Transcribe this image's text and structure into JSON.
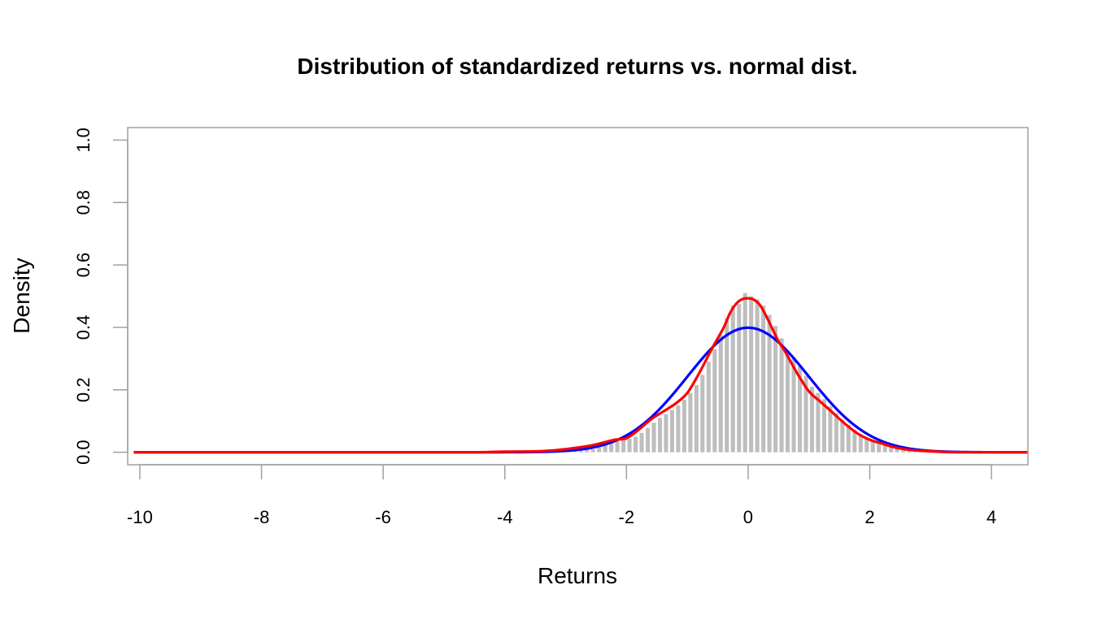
{
  "chart_data": {
    "type": "histogram",
    "title": "Distribution of standardized returns vs. normal dist.",
    "xlabel": "Returns",
    "ylabel": "Density",
    "xlim": [
      -10.2,
      4.6
    ],
    "ylim": [
      -0.04,
      1.04
    ],
    "x_ticks": [
      -10,
      -8,
      -6,
      -4,
      -2,
      0,
      2,
      4
    ],
    "x_tick_labels": [
      "-10",
      "-8",
      "-6",
      "-4",
      "-2",
      "0",
      "2",
      "4"
    ],
    "y_ticks": [
      0.0,
      0.2,
      0.4,
      0.6,
      0.8,
      1.0
    ],
    "y_tick_labels": [
      "0.0",
      "0.2",
      "0.4",
      "0.6",
      "0.8",
      "1.0"
    ],
    "grid": false,
    "histogram": {
      "color": "#bebebe",
      "bins": [
        [
          -3.4,
          -3.3,
          0.001
        ],
        [
          -3.3,
          -3.2,
          0.001
        ],
        [
          -3.2,
          -3.1,
          0.002
        ],
        [
          -3.1,
          -3.0,
          0.002
        ],
        [
          -3.0,
          -2.9,
          0.003
        ],
        [
          -2.9,
          -2.8,
          0.004
        ],
        [
          -2.8,
          -2.7,
          0.006
        ],
        [
          -2.7,
          -2.6,
          0.008
        ],
        [
          -2.6,
          -2.5,
          0.01
        ],
        [
          -2.5,
          -2.4,
          0.015
        ],
        [
          -2.4,
          -2.3,
          0.022
        ],
        [
          -2.3,
          -2.2,
          0.03
        ],
        [
          -2.2,
          -2.1,
          0.036
        ],
        [
          -2.1,
          -2.0,
          0.04
        ],
        [
          -2.0,
          -1.9,
          0.043
        ],
        [
          -1.9,
          -1.8,
          0.05
        ],
        [
          -1.8,
          -1.7,
          0.062
        ],
        [
          -1.7,
          -1.6,
          0.078
        ],
        [
          -1.6,
          -1.5,
          0.095
        ],
        [
          -1.5,
          -1.4,
          0.11
        ],
        [
          -1.4,
          -1.3,
          0.122
        ],
        [
          -1.3,
          -1.2,
          0.135
        ],
        [
          -1.2,
          -1.1,
          0.15
        ],
        [
          -1.1,
          -1.0,
          0.168
        ],
        [
          -1.0,
          -0.9,
          0.19
        ],
        [
          -0.9,
          -0.8,
          0.215
        ],
        [
          -0.8,
          -0.7,
          0.248
        ],
        [
          -0.7,
          -0.6,
          0.29
        ],
        [
          -0.6,
          -0.5,
          0.33
        ],
        [
          -0.5,
          -0.4,
          0.375
        ],
        [
          -0.4,
          -0.3,
          0.43
        ],
        [
          -0.3,
          -0.2,
          0.47
        ],
        [
          -0.2,
          -0.1,
          0.475
        ],
        [
          -0.1,
          0.0,
          0.51
        ],
        [
          0.0,
          0.1,
          0.5
        ],
        [
          0.1,
          0.2,
          0.49
        ],
        [
          0.2,
          0.3,
          0.47
        ],
        [
          0.3,
          0.4,
          0.44
        ],
        [
          0.4,
          0.5,
          0.405
        ],
        [
          0.5,
          0.6,
          0.365
        ],
        [
          0.6,
          0.7,
          0.325
        ],
        [
          0.7,
          0.8,
          0.305
        ],
        [
          0.8,
          0.9,
          0.275
        ],
        [
          0.9,
          1.0,
          0.245
        ],
        [
          1.0,
          1.1,
          0.21
        ],
        [
          1.1,
          1.2,
          0.19
        ],
        [
          1.2,
          1.3,
          0.17
        ],
        [
          1.3,
          1.4,
          0.148
        ],
        [
          1.4,
          1.5,
          0.125
        ],
        [
          1.5,
          1.6,
          0.105
        ],
        [
          1.6,
          1.7,
          0.088
        ],
        [
          1.7,
          1.8,
          0.072
        ],
        [
          1.8,
          1.9,
          0.058
        ],
        [
          1.9,
          2.0,
          0.046
        ],
        [
          2.0,
          2.1,
          0.038
        ],
        [
          2.1,
          2.2,
          0.03
        ],
        [
          2.2,
          2.3,
          0.023
        ],
        [
          2.3,
          2.4,
          0.017
        ],
        [
          2.4,
          2.5,
          0.012
        ],
        [
          2.5,
          2.6,
          0.009
        ],
        [
          2.6,
          2.7,
          0.006
        ],
        [
          2.7,
          2.8,
          0.004
        ],
        [
          2.8,
          2.9,
          0.003
        ],
        [
          2.9,
          3.0,
          0.002
        ],
        [
          3.0,
          3.1,
          0.001
        ]
      ]
    },
    "series": [
      {
        "type": "normal_density",
        "color": "#0000ff",
        "mean": 0,
        "sd": 1
      },
      {
        "type": "kernel_density",
        "color": "#ff0000",
        "x": [
          -10.1,
          -8,
          -6,
          -4.5,
          -4,
          -3.5,
          -3.2,
          -3.0,
          -2.8,
          -2.6,
          -2.4,
          -2.2,
          -2.0,
          -1.8,
          -1.6,
          -1.4,
          -1.2,
          -1.0,
          -0.8,
          -0.6,
          -0.4,
          -0.3,
          -0.2,
          -0.1,
          0.0,
          0.1,
          0.2,
          0.3,
          0.4,
          0.5,
          0.6,
          0.8,
          1.0,
          1.2,
          1.4,
          1.6,
          1.8,
          2.0,
          2.2,
          2.4,
          2.6,
          2.8,
          3.0,
          3.2,
          3.5,
          4.0,
          4.6
        ],
        "y": [
          0.0,
          0.0,
          0.0,
          0.0,
          0.002,
          0.003,
          0.006,
          0.01,
          0.015,
          0.021,
          0.03,
          0.04,
          0.045,
          0.072,
          0.105,
          0.13,
          0.155,
          0.19,
          0.255,
          0.33,
          0.4,
          0.445,
          0.475,
          0.49,
          0.493,
          0.488,
          0.47,
          0.435,
          0.395,
          0.355,
          0.325,
          0.255,
          0.195,
          0.16,
          0.125,
          0.09,
          0.06,
          0.04,
          0.028,
          0.016,
          0.009,
          0.005,
          0.003,
          0.001,
          0.0,
          0.0,
          0.0
        ]
      }
    ]
  }
}
